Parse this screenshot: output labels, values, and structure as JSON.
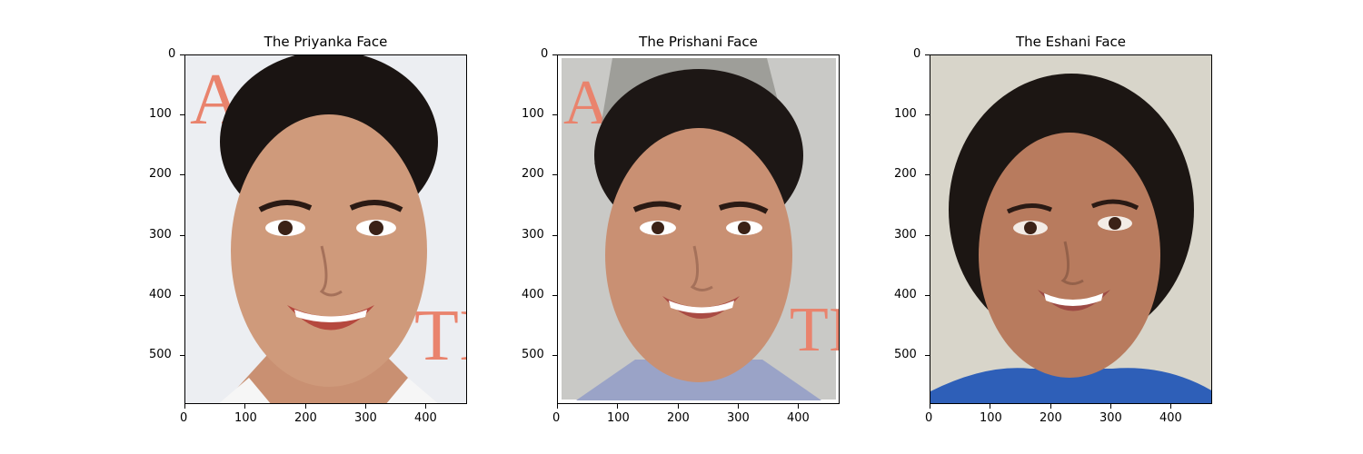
{
  "panels": [
    {
      "title": "The Priyanka Face",
      "x_ticks": [
        "0",
        "100",
        "200",
        "300",
        "400"
      ],
      "y_ticks": [
        "0",
        "100",
        "200",
        "300",
        "400",
        "500"
      ],
      "scene": {
        "background": "#eceef2",
        "shirt": "#f4f4f4",
        "has_side_letters": true
      }
    },
    {
      "title": "The Prishani Face",
      "x_ticks": [
        "0",
        "100",
        "200",
        "300",
        "400"
      ],
      "y_ticks": [
        "0",
        "100",
        "200",
        "300",
        "400",
        "500"
      ],
      "scene": {
        "background": "#c9c9c6",
        "shirt": "#9aa3c7",
        "has_side_letters": true
      }
    },
    {
      "title": "The Eshani Face",
      "x_ticks": [
        "0",
        "100",
        "200",
        "300",
        "400"
      ],
      "y_ticks": [
        "0",
        "100",
        "200",
        "300",
        "400",
        "500"
      ],
      "scene": {
        "background": "#d8d5ca",
        "shirt": "#2e5fb8",
        "has_side_letters": false
      }
    }
  ]
}
